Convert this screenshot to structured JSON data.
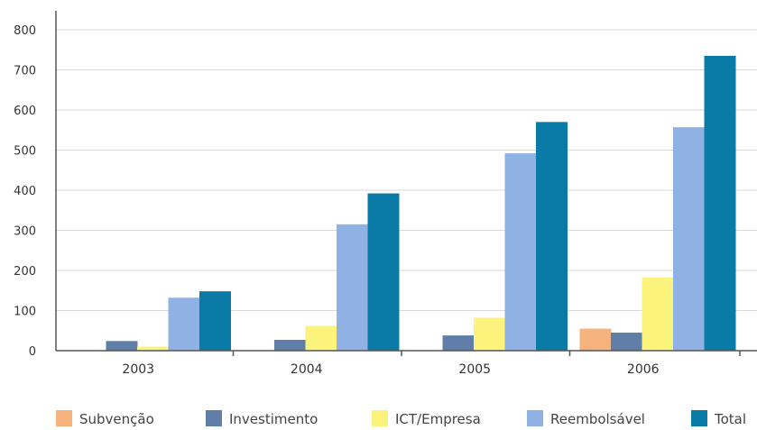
{
  "chart_data": {
    "type": "bar",
    "categories": [
      "2003",
      "2004",
      "2005",
      "2006"
    ],
    "series": [
      {
        "name": "Subvenção",
        "color": "#f5b27c",
        "values": [
          0,
          0,
          0,
          55
        ]
      },
      {
        "name": "Investimento",
        "color": "#5f7fa8",
        "values": [
          24,
          27,
          38,
          45
        ]
      },
      {
        "name": "ICT/Empresa",
        "color": "#fbf37c",
        "values": [
          10,
          62,
          82,
          183
        ]
      },
      {
        "name": "Reembolsável",
        "color": "#8fb1e3",
        "values": [
          132,
          315,
          492,
          557
        ]
      },
      {
        "name": "Total",
        "color": "#0a7aa6",
        "values": [
          148,
          392,
          570,
          735
        ]
      }
    ],
    "y_ticks": [
      "0",
      "100",
      "200",
      "300",
      "400",
      "500",
      "600",
      "700",
      "800"
    ],
    "ylim": [
      0,
      800
    ],
    "grid": true,
    "legend_position": "bottom"
  }
}
